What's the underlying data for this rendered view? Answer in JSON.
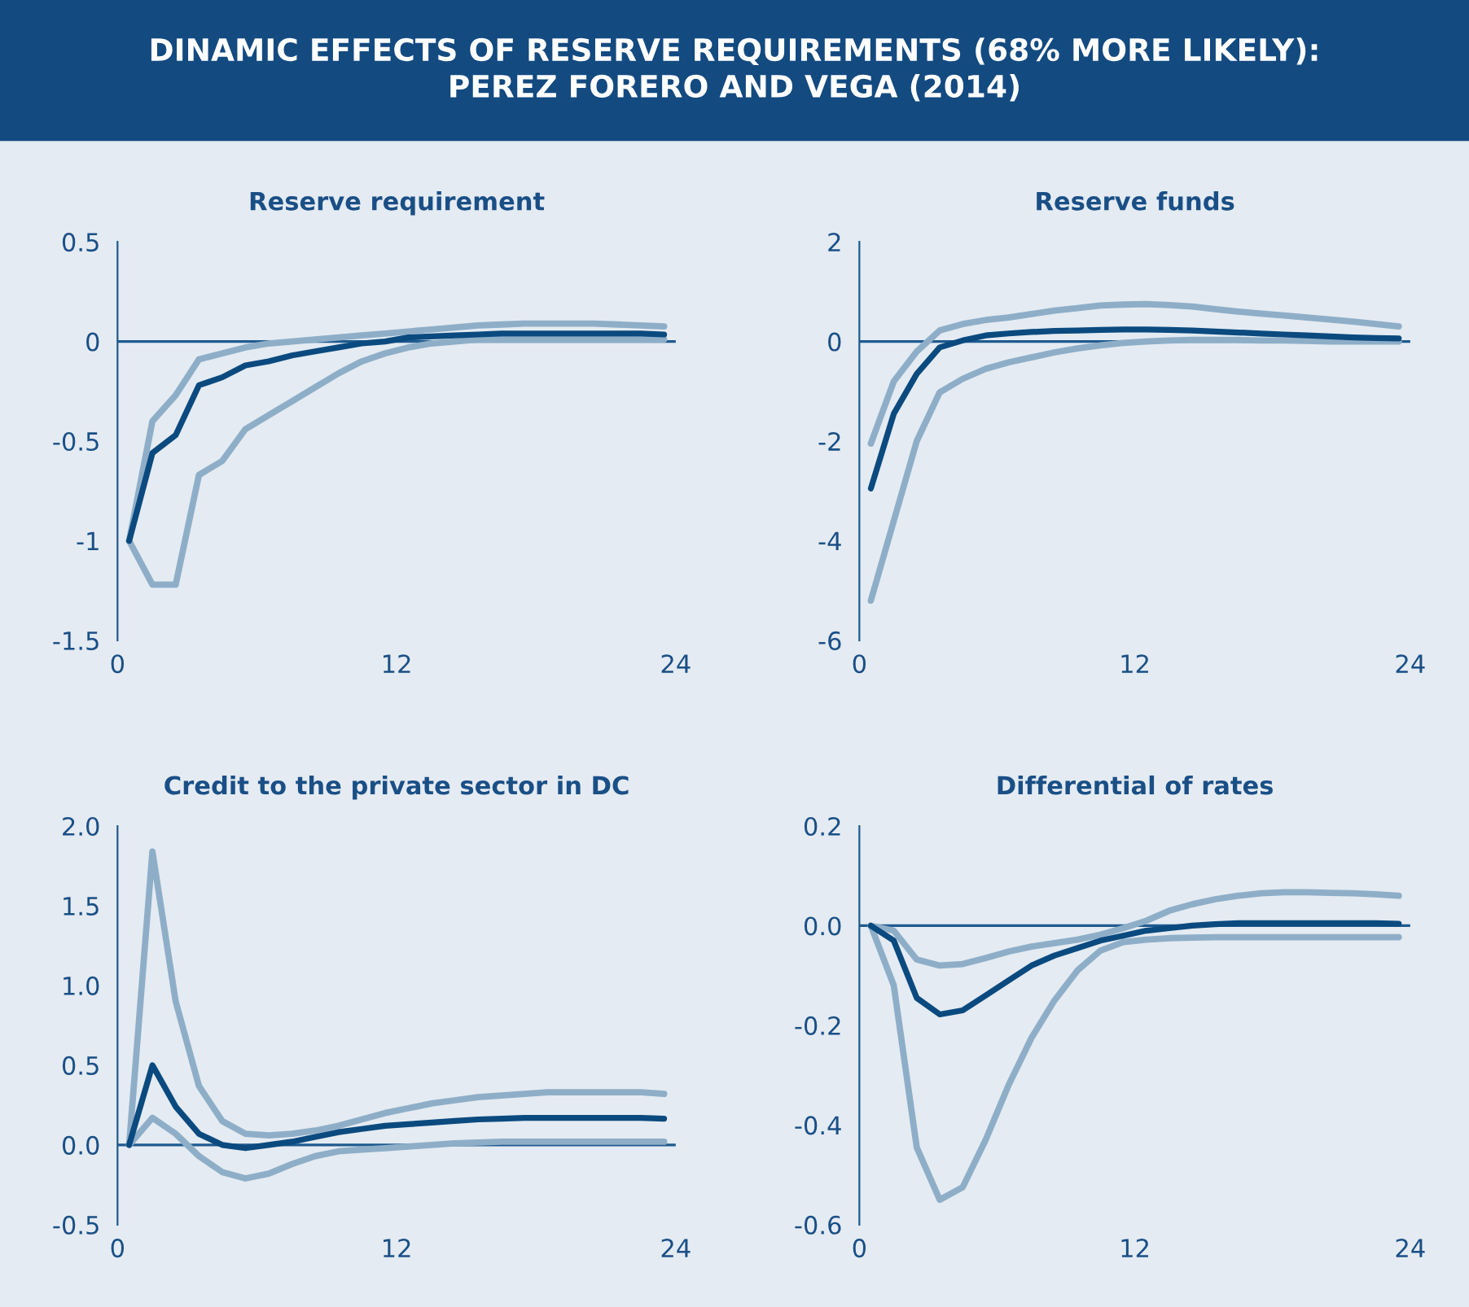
{
  "chart_data": [
    {
      "type": "line",
      "title": "Reserve requirement",
      "annotations": [
        "DINAMIC EFFECTS OF RESERVE REQUIREMENTS (68% MORE LIKELY):\nPEREZ FORERO AND VEGA (2014)"
      ],
      "x": [
        0.5,
        1.5,
        2.5,
        3.5,
        4.5,
        5.5,
        6.5,
        7.5,
        8.5,
        9.5,
        10.5,
        11.5,
        12.5,
        13.5,
        14.5,
        15.5,
        16.5,
        17.5,
        18.5,
        19.5,
        20.5,
        21.5,
        22.5,
        23.5
      ],
      "series": [
        {
          "color": "#8eaec8",
          "values": [
            -1,
            -0.4,
            -0.27,
            -0.09,
            -0.06,
            -0.03,
            -0.01,
            0.0,
            0.01,
            0.02,
            0.03,
            0.04,
            0.05,
            0.06,
            0.07,
            0.08,
            0.085,
            0.09,
            0.09,
            0.09,
            0.09,
            0.085,
            0.08,
            0.075
          ]
        },
        {
          "color": "#8eaec8",
          "values": [
            -1,
            -1.22,
            -1.22,
            -0.67,
            -0.6,
            -0.44,
            -0.37,
            -0.3,
            -0.23,
            -0.16,
            -0.1,
            -0.06,
            -0.03,
            -0.01,
            0.0,
            0.01,
            0.01,
            0.01,
            0.01,
            0.01,
            0.01,
            0.01,
            0.01,
            0.01
          ]
        },
        {
          "color": "#0b4a7f",
          "values": [
            -1,
            -0.56,
            -0.47,
            -0.22,
            -0.18,
            -0.12,
            -0.1,
            -0.07,
            -0.05,
            -0.03,
            -0.01,
            0.0,
            0.02,
            0.025,
            0.03,
            0.035,
            0.04,
            0.04,
            0.04,
            0.04,
            0.04,
            0.04,
            0.04,
            0.035
          ]
        }
      ],
      "xlim": [
        0,
        24
      ],
      "xticks": [
        0,
        12,
        24
      ],
      "ylim": [
        -1.5,
        0.5
      ],
      "yticks": [
        0.5,
        0,
        -0.5,
        -1,
        -1.5
      ],
      "ref_lines": [
        {
          "axis": "y",
          "value": 0,
          "color": "#1f5a8f"
        }
      ],
      "grid": false,
      "legend": false,
      "marker": "none",
      "line_style": "solid"
    },
    {
      "type": "line",
      "title": "Reserve funds",
      "x": [
        0.5,
        1.5,
        2.5,
        3.5,
        4.5,
        5.5,
        6.5,
        7.5,
        8.5,
        9.5,
        10.5,
        11.5,
        12.5,
        13.5,
        14.5,
        15.5,
        16.5,
        17.5,
        18.5,
        19.5,
        20.5,
        21.5,
        22.5,
        23.5
      ],
      "series": [
        {
          "color": "#8eaec8",
          "values": [
            -2.05,
            -0.8,
            -0.2,
            0.22,
            0.35,
            0.43,
            0.48,
            0.55,
            0.62,
            0.67,
            0.72,
            0.74,
            0.75,
            0.73,
            0.7,
            0.65,
            0.6,
            0.56,
            0.52,
            0.48,
            0.44,
            0.4,
            0.35,
            0.3
          ]
        },
        {
          "color": "#8eaec8",
          "values": [
            -5.2,
            -3.6,
            -2.0,
            -1.02,
            -0.75,
            -0.55,
            -0.42,
            -0.32,
            -0.22,
            -0.14,
            -0.08,
            -0.03,
            0.0,
            0.02,
            0.03,
            0.03,
            0.03,
            0.02,
            0.02,
            0.01,
            0.0,
            0.0,
            0.0,
            0.0
          ]
        },
        {
          "color": "#0b4a7f",
          "values": [
            -2.95,
            -1.45,
            -0.65,
            -0.12,
            0.02,
            0.12,
            0.16,
            0.19,
            0.21,
            0.22,
            0.23,
            0.24,
            0.24,
            0.23,
            0.22,
            0.2,
            0.18,
            0.16,
            0.14,
            0.12,
            0.1,
            0.08,
            0.07,
            0.06
          ]
        }
      ],
      "xlim": [
        0,
        24
      ],
      "xticks": [
        0,
        12,
        24
      ],
      "ylim": [
        -6,
        2
      ],
      "yticks": [
        2,
        0,
        -2,
        -4,
        -6
      ],
      "ref_lines": [
        {
          "axis": "y",
          "value": 0,
          "color": "#1f5a8f"
        }
      ],
      "grid": false,
      "legend": false,
      "marker": "none",
      "line_style": "solid"
    },
    {
      "type": "line",
      "title": "Credit to the private sector in DC",
      "x": [
        0.5,
        1.5,
        2.5,
        3.5,
        4.5,
        5.5,
        6.5,
        7.5,
        8.5,
        9.5,
        10.5,
        11.5,
        12.5,
        13.5,
        14.5,
        15.5,
        16.5,
        17.5,
        18.5,
        19.5,
        20.5,
        21.5,
        22.5,
        23.5
      ],
      "series": [
        {
          "color": "#8eaec8",
          "values": [
            0.0,
            1.84,
            0.9,
            0.37,
            0.15,
            0.07,
            0.06,
            0.07,
            0.09,
            0.12,
            0.16,
            0.2,
            0.23,
            0.26,
            0.28,
            0.3,
            0.31,
            0.32,
            0.33,
            0.33,
            0.33,
            0.33,
            0.33,
            0.32
          ]
        },
        {
          "color": "#8eaec8",
          "values": [
            0.0,
            0.17,
            0.07,
            -0.07,
            -0.17,
            -0.21,
            -0.18,
            -0.12,
            -0.07,
            -0.04,
            -0.03,
            -0.02,
            -0.01,
            0.0,
            0.01,
            0.015,
            0.02,
            0.02,
            0.02,
            0.02,
            0.02,
            0.02,
            0.02,
            0.02
          ]
        },
        {
          "color": "#0b4a7f",
          "values": [
            0.0,
            0.5,
            0.24,
            0.07,
            0.0,
            -0.02,
            0.0,
            0.02,
            0.05,
            0.08,
            0.1,
            0.12,
            0.13,
            0.14,
            0.15,
            0.16,
            0.165,
            0.17,
            0.17,
            0.17,
            0.17,
            0.17,
            0.17,
            0.165
          ]
        }
      ],
      "xlim": [
        0,
        24
      ],
      "xticks": [
        0,
        12,
        24
      ],
      "ylim": [
        -0.5,
        2.0
      ],
      "yticks": [
        {
          "value": 2.0,
          "label": "2.0"
        },
        1.5,
        {
          "value": 1.0,
          "label": "1.0"
        },
        0.5,
        {
          "value": 0.0,
          "label": "0.0"
        },
        -0.5
      ],
      "ref_lines": [
        {
          "axis": "y",
          "value": 0,
          "color": "#1f5a8f"
        }
      ],
      "grid": false,
      "legend": false,
      "marker": "none",
      "line_style": "solid"
    },
    {
      "type": "line",
      "title": "Differential of rates",
      "x": [
        0.5,
        1.5,
        2.5,
        3.5,
        4.5,
        5.5,
        6.5,
        7.5,
        8.5,
        9.5,
        10.5,
        11.5,
        12.5,
        13.5,
        14.5,
        15.5,
        16.5,
        17.5,
        18.5,
        19.5,
        20.5,
        21.5,
        22.5,
        23.5
      ],
      "series": [
        {
          "color": "#8eaec8",
          "values": [
            0.0,
            -0.01,
            -0.068,
            -0.08,
            -0.077,
            -0.065,
            -0.052,
            -0.042,
            -0.035,
            -0.028,
            -0.018,
            -0.005,
            0.01,
            0.03,
            0.043,
            0.053,
            0.06,
            0.065,
            0.067,
            0.067,
            0.066,
            0.065,
            0.063,
            0.06
          ]
        },
        {
          "color": "#8eaec8",
          "values": [
            0.0,
            -0.12,
            -0.445,
            -0.55,
            -0.525,
            -0.43,
            -0.32,
            -0.225,
            -0.15,
            -0.09,
            -0.05,
            -0.033,
            -0.028,
            -0.025,
            -0.024,
            -0.023,
            -0.023,
            -0.023,
            -0.023,
            -0.023,
            -0.023,
            -0.023,
            -0.023,
            -0.023
          ]
        },
        {
          "color": "#0b4a7f",
          "values": [
            0.0,
            -0.03,
            -0.145,
            -0.178,
            -0.17,
            -0.14,
            -0.11,
            -0.08,
            -0.06,
            -0.045,
            -0.03,
            -0.02,
            -0.01,
            -0.005,
            0.0,
            0.003,
            0.005,
            0.005,
            0.005,
            0.005,
            0.005,
            0.005,
            0.005,
            0.004
          ]
        }
      ],
      "xlim": [
        0,
        24
      ],
      "xticks": [
        0,
        12,
        24
      ],
      "ylim": [
        -0.6,
        0.2
      ],
      "yticks": [
        0.2,
        {
          "value": 0.0,
          "label": "0.0"
        },
        -0.2,
        -0.4,
        -0.6
      ],
      "ref_lines": [
        {
          "axis": "y",
          "value": 0,
          "color": "#1f5a8f"
        }
      ],
      "grid": false,
      "legend": false,
      "marker": "none",
      "line_style": "solid"
    }
  ]
}
